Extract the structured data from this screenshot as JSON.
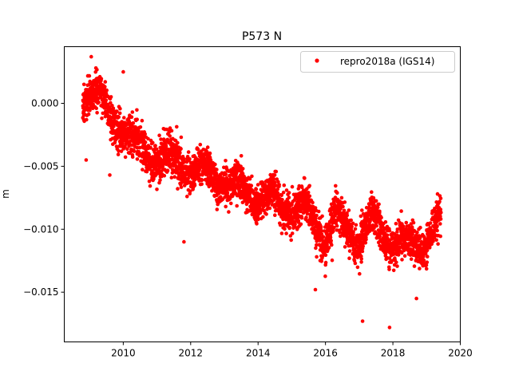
{
  "chart_data": {
    "type": "scatter",
    "title": "P573 N",
    "xlabel": "",
    "ylabel": "m",
    "xlim": [
      2008.25,
      2020.0
    ],
    "ylim": [
      -0.01895,
      0.0045
    ],
    "xticks": [
      2010,
      2012,
      2014,
      2016,
      2018,
      2020
    ],
    "yticks": [
      0.0,
      -0.005,
      -0.01,
      -0.015
    ],
    "ytick_labels": [
      "0.000",
      "−0.005",
      "−0.010",
      "−0.015"
    ],
    "grid": false,
    "legend": {
      "placement": "top-right",
      "entries": [
        "repro2018a (IGS14)"
      ]
    },
    "series": [
      {
        "name": "repro2018a (IGS14)",
        "color": "#ff0000",
        "marker": "dot",
        "x_start": 2008.8,
        "x_end": 2019.43,
        "trend_knots": [
          [
            2008.8,
            0.0002
          ],
          [
            2009.0,
            0.0012
          ],
          [
            2009.3,
            0.0006
          ],
          [
            2009.6,
            -0.0012
          ],
          [
            2010.0,
            -0.0018
          ],
          [
            2010.3,
            -0.003
          ],
          [
            2010.7,
            -0.004
          ],
          [
            2011.0,
            -0.0042
          ],
          [
            2011.5,
            -0.0046
          ],
          [
            2012.0,
            -0.005
          ],
          [
            2012.5,
            -0.0056
          ],
          [
            2013.0,
            -0.0062
          ],
          [
            2013.5,
            -0.0068
          ],
          [
            2014.0,
            -0.0074
          ],
          [
            2014.5,
            -0.0078
          ],
          [
            2015.0,
            -0.0082
          ],
          [
            2015.5,
            -0.0085
          ],
          [
            2016.0,
            -0.0108
          ],
          [
            2016.3,
            -0.009
          ],
          [
            2016.6,
            -0.01
          ],
          [
            2017.0,
            -0.0108
          ],
          [
            2017.4,
            -0.0092
          ],
          [
            2017.8,
            -0.0108
          ],
          [
            2018.2,
            -0.0112
          ],
          [
            2018.6,
            -0.0112
          ],
          [
            2019.0,
            -0.0108
          ],
          [
            2019.43,
            -0.0092
          ]
        ],
        "seasonal_amplitude": 0.0011,
        "noise_sd": 0.00075,
        "outliers": [
          [
            2008.9,
            -0.0045
          ],
          [
            2009.6,
            -0.0057
          ],
          [
            2011.8,
            -0.011
          ],
          [
            2015.7,
            -0.0148
          ],
          [
            2017.1,
            -0.0173
          ],
          [
            2017.9,
            -0.0178
          ],
          [
            2018.7,
            -0.0155
          ],
          [
            2010.0,
            0.0025
          ],
          [
            2009.05,
            0.0037
          ]
        ]
      }
    ]
  }
}
